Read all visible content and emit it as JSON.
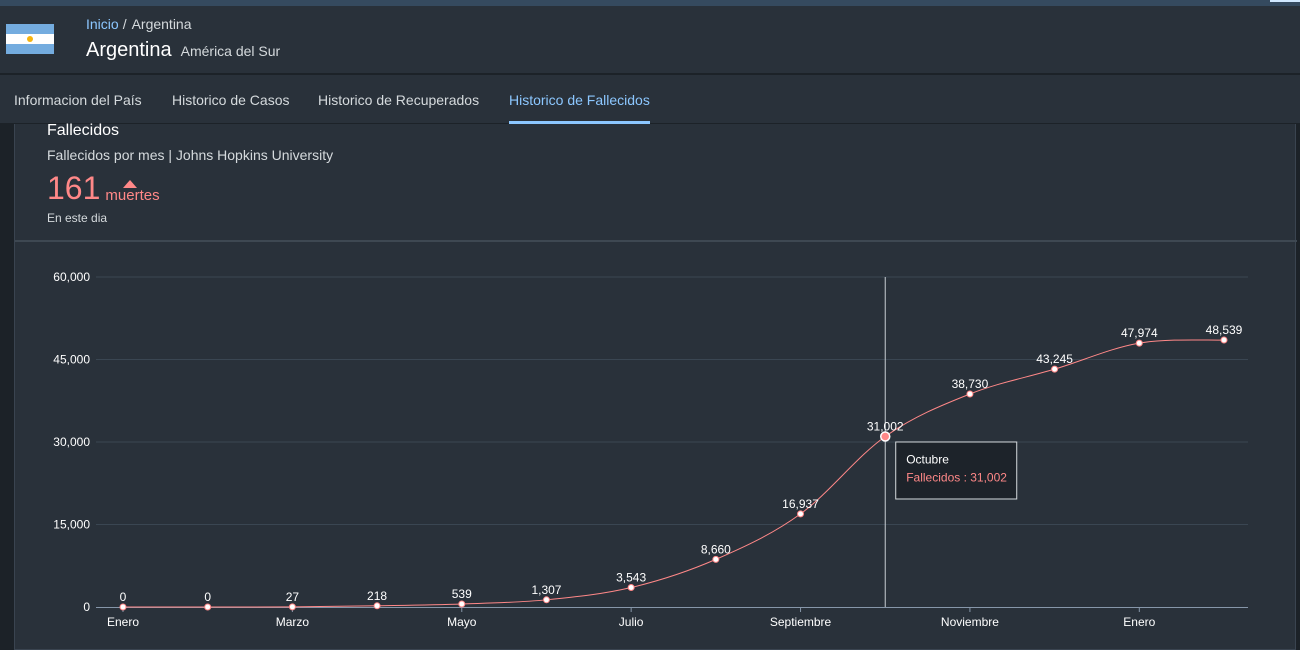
{
  "breadcrumb": {
    "home": "Inicio",
    "current": "Argentina"
  },
  "header": {
    "country": "Argentina",
    "region": "América del Sur",
    "flag_icon": "argentina-flag-icon"
  },
  "tabs": [
    {
      "label": "Informacion del País",
      "selected": false
    },
    {
      "label": "Historico de Casos",
      "selected": false
    },
    {
      "label": "Historico de Recuperados",
      "selected": false
    },
    {
      "label": "Historico de Fallecidos",
      "selected": true
    }
  ],
  "card": {
    "title": "Fallecidos",
    "subtitle": "Fallecidos por mes | Johns Hopkins University",
    "kpi_value": "161",
    "kpi_unit": "muertes",
    "kpi_trend_icon": "up-triangle-icon",
    "kpi_caption": "En este dia"
  },
  "colors": {
    "accent": "#8cc7ff",
    "line": "#ff8888",
    "background": "#29313a"
  },
  "chart_data": {
    "type": "line",
    "title": "",
    "xlabel": "",
    "ylabel": "",
    "ylim": [
      0,
      60000
    ],
    "yticks": [
      0,
      15000,
      30000,
      45000,
      60000
    ],
    "ytick_labels": [
      "0",
      "15,000",
      "30,000",
      "45,000",
      "60,000"
    ],
    "x_tick_labels": [
      "Enero",
      "Marzo",
      "Mayo",
      "Julio",
      "Septiembre",
      "Noviembre",
      "Enero"
    ],
    "x_tick_every": 2,
    "grid": true,
    "series": [
      {
        "name": "Fallecidos",
        "values": [
          0,
          0,
          27,
          218,
          539,
          1307,
          3543,
          8660,
          16937,
          31002,
          38730,
          43245,
          47974,
          48539
        ],
        "labels": [
          "0",
          "0",
          "27",
          "218",
          "539",
          "1,307",
          "3,543",
          "8,660",
          "16,937",
          "31,002",
          "38,730",
          "43,245",
          "47,974",
          "48,539"
        ]
      }
    ],
    "tooltip": {
      "index": 9,
      "title": "Octubre",
      "text": "Fallecidos : 31,002"
    }
  }
}
